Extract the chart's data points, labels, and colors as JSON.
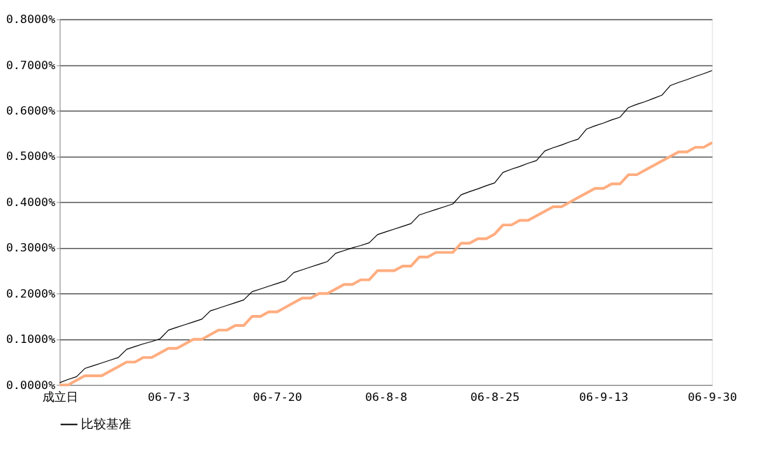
{
  "chart_data": {
    "type": "line",
    "categories": [
      "成立日",
      null,
      null,
      null,
      null,
      null,
      null,
      null,
      null,
      null,
      null,
      null,
      null,
      "06-7-3",
      null,
      null,
      null,
      null,
      null,
      null,
      null,
      null,
      null,
      null,
      null,
      null,
      "06-7-20",
      null,
      null,
      null,
      null,
      null,
      null,
      null,
      null,
      null,
      null,
      null,
      null,
      "06-8-8",
      null,
      null,
      null,
      null,
      null,
      null,
      null,
      null,
      null,
      null,
      null,
      null,
      "06-8-25",
      null,
      null,
      null,
      null,
      null,
      null,
      null,
      null,
      null,
      null,
      null,
      null,
      "06-9-13",
      null,
      null,
      null,
      null,
      null,
      null,
      null,
      null,
      null,
      null,
      null,
      null,
      "06-9-30"
    ],
    "series": [
      {
        "color": "#ffad80",
        "values": [
          0.0,
          0.0,
          0.01,
          0.02,
          0.02,
          0.02,
          0.03,
          0.04,
          0.05,
          0.05,
          0.06,
          0.06,
          0.07,
          0.08,
          0.08,
          0.09,
          0.1,
          0.1,
          0.11,
          0.12,
          0.12,
          0.13,
          0.13,
          0.15,
          0.15,
          0.16,
          0.16,
          0.17,
          0.18,
          0.19,
          0.19,
          0.2,
          0.2,
          0.21,
          0.22,
          0.22,
          0.23,
          0.23,
          0.25,
          0.25,
          0.25,
          0.26,
          0.26,
          0.28,
          0.28,
          0.29,
          0.29,
          0.29,
          0.31,
          0.31,
          0.32,
          0.32,
          0.33,
          0.35,
          0.35,
          0.36,
          0.36,
          0.37,
          0.38,
          0.39,
          0.39,
          0.4,
          0.41,
          0.42,
          0.43,
          0.43,
          0.44,
          0.44,
          0.46,
          0.46,
          0.47,
          0.48,
          0.49,
          0.5,
          0.51,
          0.51,
          0.52,
          0.52,
          0.53
        ]
      },
      {
        "name": "比较基准",
        "color": "#000000",
        "values": [
          0.005,
          0.012,
          0.018,
          0.036,
          0.042,
          0.048,
          0.054,
          0.06,
          0.078,
          0.084,
          0.09,
          0.095,
          0.101,
          0.12,
          0.126,
          0.132,
          0.138,
          0.144,
          0.162,
          0.168,
          0.174,
          0.18,
          0.186,
          0.204,
          0.21,
          0.216,
          0.222,
          0.228,
          0.246,
          0.252,
          0.258,
          0.264,
          0.27,
          0.288,
          0.294,
          0.3,
          0.305,
          0.311,
          0.329,
          0.335,
          0.341,
          0.347,
          0.353,
          0.372,
          0.378,
          0.384,
          0.39,
          0.396,
          0.416,
          0.423,
          0.429,
          0.436,
          0.442,
          0.465,
          0.472,
          0.478,
          0.485,
          0.491,
          0.512,
          0.519,
          0.525,
          0.532,
          0.538,
          0.56,
          0.567,
          0.573,
          0.58,
          0.586,
          0.607,
          0.614,
          0.62,
          0.627,
          0.634,
          0.655,
          0.662,
          0.668,
          0.675,
          0.681,
          0.688
        ]
      }
    ],
    "ylim": [
      0,
      0.8
    ],
    "yticks": [
      {
        "value": 0,
        "label": "0.0000%"
      },
      {
        "value": 0.1,
        "label": "0.1000%"
      },
      {
        "value": 0.2,
        "label": "0.2000%"
      },
      {
        "value": 0.3,
        "label": "0.3000%"
      },
      {
        "value": 0.4,
        "label": "0.4000%"
      },
      {
        "value": 0.5,
        "label": "0.5000%"
      },
      {
        "value": 0.6,
        "label": "0.6000%"
      },
      {
        "value": 0.7,
        "label": "0.7000%"
      },
      {
        "value": 0.8,
        "label": "0.8000%"
      }
    ],
    "grid": "y",
    "legend": "bottom",
    "marker": "none",
    "line_style": "solid"
  }
}
